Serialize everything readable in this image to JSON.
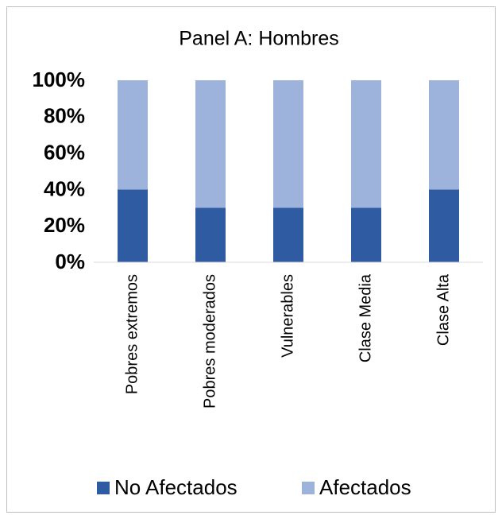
{
  "chart_data": {
    "type": "stacked_bar",
    "title": "Panel A: Hombres",
    "categories": [
      "Pobres extremos",
      "Pobres moderados",
      "Vulnerables",
      "Clase Media",
      "Clase Alta"
    ],
    "series": [
      {
        "name": "No Afectados",
        "color": "#2f5ba3",
        "values": [
          40,
          30,
          30,
          30,
          40
        ]
      },
      {
        "name": "Afectados",
        "color": "#9db3dc",
        "values": [
          60,
          70,
          70,
          70,
          60
        ]
      }
    ],
    "ylim": [
      0,
      100
    ],
    "yticks": [
      {
        "value": 0,
        "label": "0%"
      },
      {
        "value": 20,
        "label": "20%"
      },
      {
        "value": 40,
        "label": "40%"
      },
      {
        "value": 60,
        "label": "60%"
      },
      {
        "value": 80,
        "label": "80%"
      },
      {
        "value": 100,
        "label": "100%"
      }
    ],
    "grid": false,
    "legend": "bottom"
  }
}
